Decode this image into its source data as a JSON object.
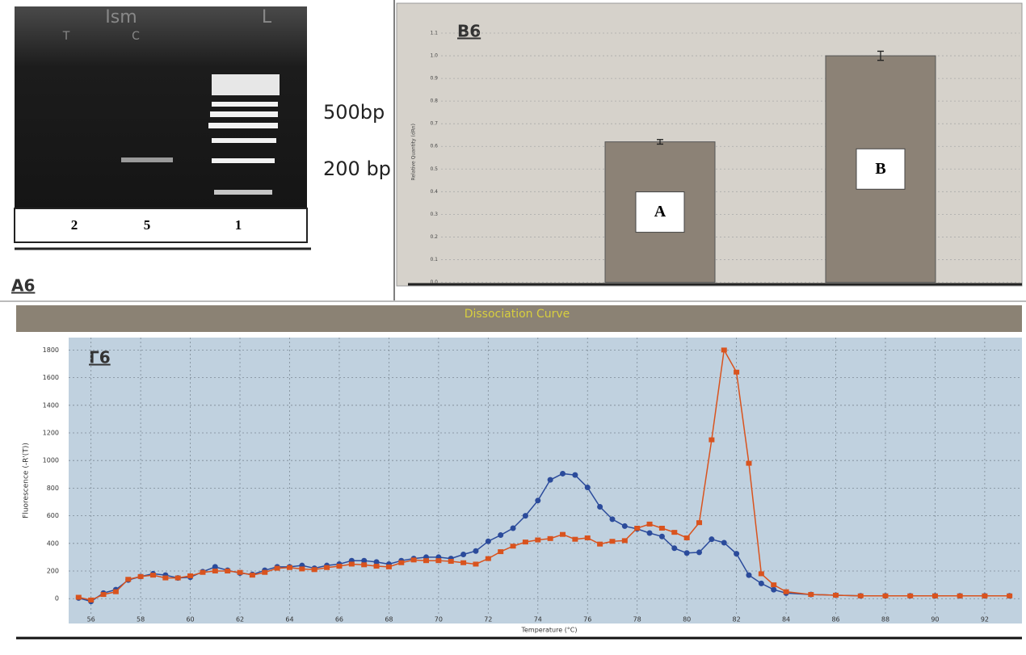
{
  "gel": {
    "panel_label": "А6",
    "top_labels": [
      "Ism",
      "L"
    ],
    "lane_labels": [
      "T",
      "C"
    ],
    "lanes": [
      "2",
      "5",
      "1"
    ],
    "markers": [
      "500bp",
      "200 bp"
    ]
  },
  "chart_data": [
    {
      "type": "bar",
      "title": "В6",
      "y_label": "Relative Quantity (dRn)",
      "categories": [
        "A",
        "B"
      ],
      "values": [
        0.62,
        1.0
      ],
      "errors": [
        0.01,
        0.02
      ],
      "color": "#8c8276",
      "ylim": [
        0,
        1.15
      ],
      "yticks": [
        {
          "value": 0,
          "label": "0.0"
        },
        0.1,
        0.2,
        0.3,
        0.4,
        0.5,
        0.6,
        0.7,
        0.8,
        0.9,
        {
          "value": 1,
          "label": "1.0"
        },
        1.1
      ],
      "grid": true
    },
    {
      "type": "line",
      "header": "Dissociation Curve",
      "title": "Г6",
      "x_label": "Temperature (°C)",
      "y_label": "Fluorescence (-R'(T))",
      "x": [
        55.5,
        56,
        56.5,
        57,
        57.5,
        58,
        58.5,
        59,
        59.5,
        60,
        60.5,
        61,
        61.5,
        62,
        62.5,
        63,
        63.5,
        64,
        64.5,
        65,
        65.5,
        66,
        66.5,
        67,
        67.5,
        68,
        68.5,
        69,
        69.5,
        70,
        70.5,
        71,
        71.5,
        72,
        72.5,
        73,
        73.5,
        74,
        74.5,
        75,
        75.5,
        76,
        76.5,
        77,
        77.5,
        78,
        78.5,
        79,
        79.5,
        80,
        80.5,
        81,
        81.5,
        82,
        82.5,
        83,
        83.5,
        84,
        85,
        86,
        87,
        88,
        89,
        90,
        91,
        92,
        93
      ],
      "series": [
        {
          "color": "#2b4b9b",
          "values": [
            5,
            -20,
            40,
            65,
            135,
            160,
            180,
            170,
            150,
            155,
            195,
            230,
            205,
            185,
            175,
            205,
            230,
            230,
            240,
            220,
            240,
            250,
            275,
            275,
            265,
            250,
            275,
            290,
            300,
            300,
            290,
            320,
            345,
            415,
            460,
            510,
            600,
            710,
            860,
            905,
            895,
            805,
            665,
            575,
            525,
            505,
            475,
            450,
            365,
            330,
            335,
            430,
            405,
            325,
            170,
            110,
            65,
            40,
            30,
            25,
            20,
            20,
            20,
            20,
            20,
            20,
            20
          ]
        },
        {
          "color": "#d9531e",
          "values": [
            10,
            -10,
            30,
            50,
            140,
            160,
            170,
            150,
            150,
            165,
            190,
            200,
            200,
            190,
            170,
            190,
            220,
            225,
            215,
            210,
            225,
            235,
            250,
            245,
            235,
            230,
            260,
            280,
            275,
            275,
            270,
            260,
            250,
            290,
            340,
            380,
            410,
            425,
            435,
            465,
            430,
            440,
            395,
            415,
            420,
            510,
            540,
            510,
            480,
            440,
            550,
            1150,
            1800,
            1640,
            980,
            180,
            100,
            50,
            30,
            25,
            20,
            20,
            20,
            20,
            20,
            20,
            20
          ]
        }
      ],
      "xlim": [
        55.1,
        93.5
      ],
      "ylim": [
        -180,
        1890
      ],
      "xticks": [
        56,
        58,
        60,
        62,
        64,
        66,
        68,
        70,
        72,
        74,
        76,
        78,
        80,
        82,
        84,
        86,
        88,
        90,
        92
      ],
      "yticks": [
        0,
        200,
        400,
        600,
        800,
        1000,
        1200,
        1400,
        1600,
        1800
      ],
      "grid": true
    }
  ]
}
